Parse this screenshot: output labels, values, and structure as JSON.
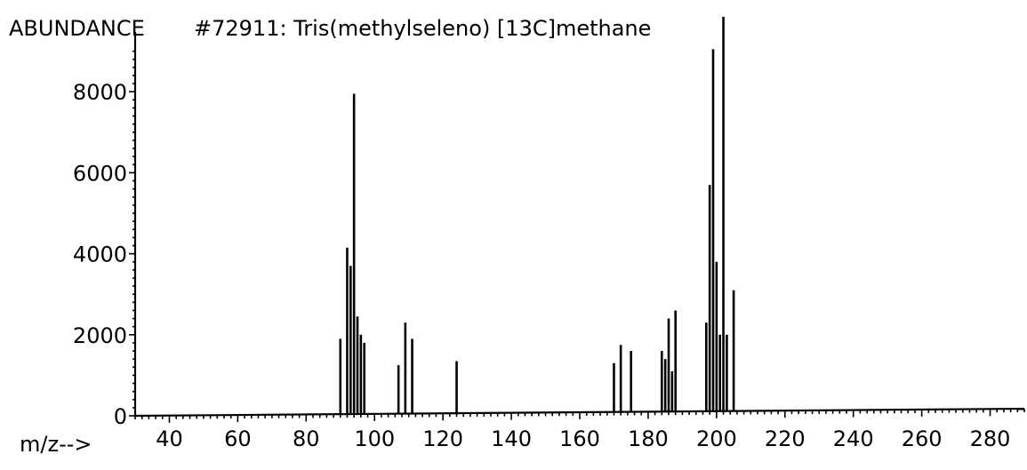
{
  "chart_data": {
    "type": "bar",
    "title": "#72911: Tris(methylseleno) [13C]methane",
    "ylabel": "ABUNDANCE",
    "xlabel": "m/z-->",
    "xlim": [
      30,
      290
    ],
    "ylim": [
      0,
      10000
    ],
    "x_ticks": [
      40,
      60,
      80,
      100,
      120,
      140,
      160,
      180,
      200,
      220,
      240,
      260,
      280
    ],
    "y_ticks": [
      0,
      2000,
      4000,
      6000,
      8000
    ],
    "grid": false,
    "series": [
      {
        "x": [
          90,
          92,
          93,
          94,
          95,
          96,
          97,
          107,
          109,
          111,
          124,
          170,
          172,
          175,
          184,
          185,
          186,
          187,
          188,
          197,
          198,
          199,
          200,
          201,
          202,
          203,
          205
        ],
        "values": [
          1900,
          4150,
          3700,
          7950,
          2450,
          2000,
          1800,
          1250,
          2300,
          1900,
          1350,
          1300,
          1750,
          1600,
          1600,
          1400,
          2400,
          1100,
          2600,
          2300,
          5700,
          9050,
          3800,
          2000,
          9850,
          2000,
          3100
        ]
      }
    ]
  }
}
